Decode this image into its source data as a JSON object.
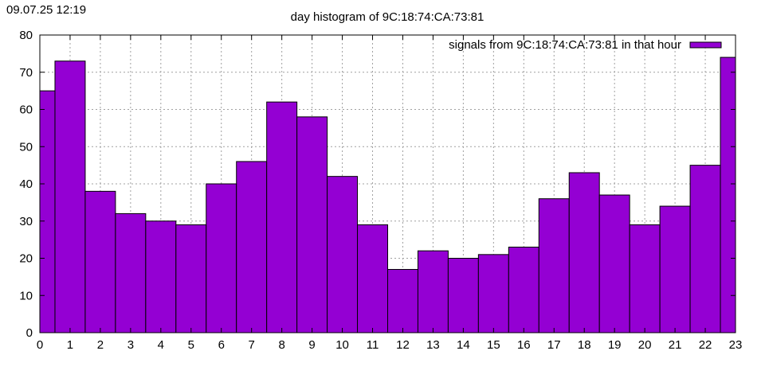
{
  "timestamp": "09.07.25 12:19",
  "chart_data": {
    "type": "bar",
    "title": "day histogram of 9C:18:74:CA:73:81",
    "xlabel": "",
    "ylabel": "",
    "categories": [
      "0",
      "1",
      "2",
      "3",
      "4",
      "5",
      "6",
      "7",
      "8",
      "9",
      "10",
      "11",
      "12",
      "13",
      "14",
      "15",
      "16",
      "17",
      "18",
      "19",
      "20",
      "21",
      "22",
      "23"
    ],
    "series": [
      {
        "name": "signals from 9C:18:74:CA:73:81 in that hour",
        "color": "#9400d3",
        "values": [
          65,
          73,
          38,
          32,
          30,
          29,
          40,
          46,
          62,
          58,
          42,
          29,
          17,
          22,
          20,
          21,
          23,
          36,
          43,
          37,
          29,
          34,
          45,
          74
        ]
      }
    ],
    "xlim": [
      0,
      23
    ],
    "ylim": [
      0,
      80
    ],
    "yticks": [
      0,
      10,
      20,
      30,
      40,
      50,
      60,
      70,
      80
    ],
    "grid": true,
    "legend": "top-right"
  }
}
